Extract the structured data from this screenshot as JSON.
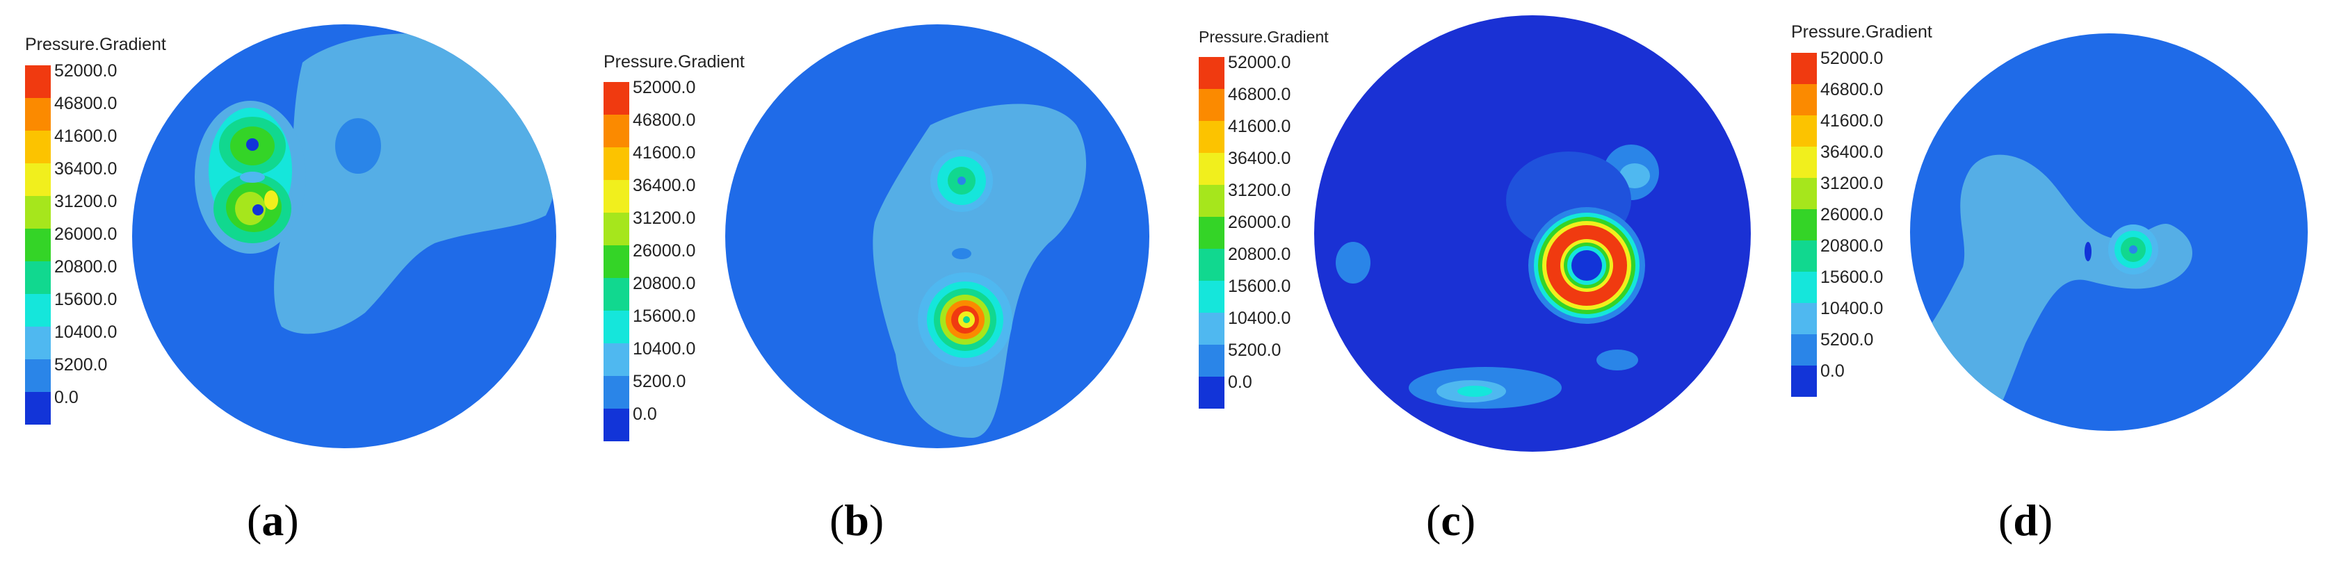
{
  "legend": {
    "title": "Pressure.Gradient",
    "ticks": [
      "52000.0",
      "46800.0",
      "41600.0",
      "36400.0",
      "31200.0",
      "26000.0",
      "20800.0",
      "15600.0",
      "10400.0",
      "5200.0",
      "0.0"
    ],
    "colors": [
      "#f03a10",
      "#fb8a00",
      "#fcc300",
      "#f1ef1d",
      "#a6e61c",
      "#34d427",
      "#11d88f",
      "#15e6db",
      "#4fb8f0",
      "#2a85e8",
      "#1234d8"
    ]
  },
  "panels": [
    {
      "id": "a",
      "label": "a",
      "open": "(",
      "close": ")"
    },
    {
      "id": "b",
      "label": "b",
      "open": "(",
      "close": ")"
    },
    {
      "id": "c",
      "label": "c",
      "open": "(",
      "close": ")"
    },
    {
      "id": "d",
      "label": "d",
      "open": "(",
      "close": ")"
    }
  ]
}
